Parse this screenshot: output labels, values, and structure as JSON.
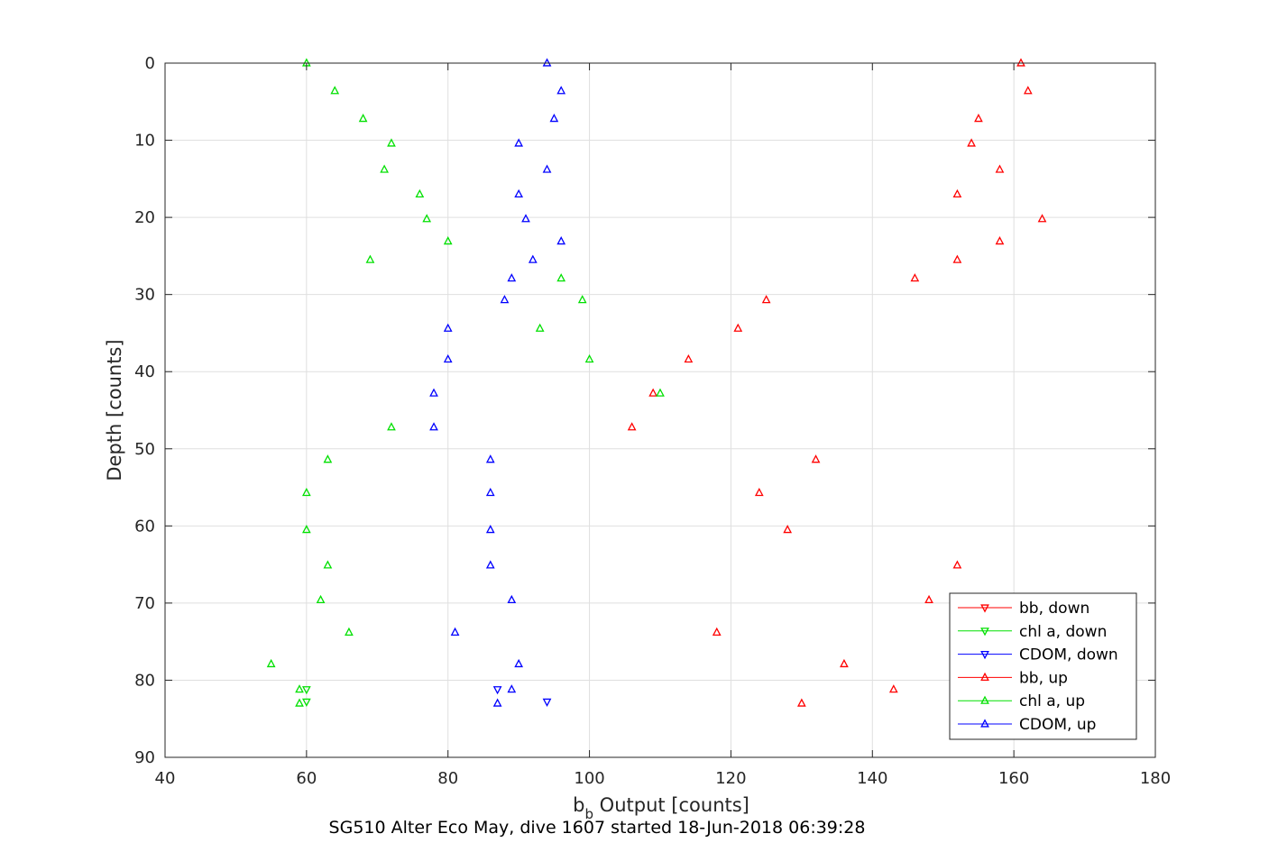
{
  "chart_data": {
    "type": "scatter",
    "xlabel_main": "b",
    "xlabel_sub": "b",
    "xlabel_rest": " Output [counts]",
    "ylabel": "Depth [counts]",
    "subtitle": "SG510 Alter Eco May, dive 1607 started 18-Jun-2018 06:39:28",
    "xlim": [
      40,
      180
    ],
    "ylim": [
      0,
      90
    ],
    "y_reversed": true,
    "x_ticks": [
      "40",
      "60",
      "80",
      "100",
      "120",
      "140",
      "160",
      "180"
    ],
    "y_ticks": [
      "0",
      "10",
      "20",
      "30",
      "40",
      "50",
      "60",
      "70",
      "80",
      "90"
    ],
    "grid": true,
    "legend_position": "bottom-right",
    "series": [
      {
        "name": "bb, down",
        "color": "#ff0000",
        "marker": "triangle-down",
        "points": []
      },
      {
        "name": "chl a, down",
        "color": "#00e000",
        "marker": "triangle-down",
        "points": [
          [
            60,
            81.2
          ],
          [
            60,
            82.8
          ]
        ]
      },
      {
        "name": "CDOM, down",
        "color": "#0000ff",
        "marker": "triangle-down",
        "points": [
          [
            87,
            81.2
          ],
          [
            94,
            82.8
          ]
        ]
      },
      {
        "name": "bb, up",
        "color": "#ff0000",
        "marker": "triangle-up",
        "points": [
          [
            161,
            0
          ],
          [
            162,
            3.6
          ],
          [
            155,
            7.2
          ],
          [
            154,
            10.4
          ],
          [
            158,
            13.8
          ],
          [
            152,
            17
          ],
          [
            164,
            20.2
          ],
          [
            158,
            23.1
          ],
          [
            152,
            25.5
          ],
          [
            146,
            27.9
          ],
          [
            125,
            30.7
          ],
          [
            121,
            34.4
          ],
          [
            114,
            38.4
          ],
          [
            109,
            42.8
          ],
          [
            106,
            47.2
          ],
          [
            132,
            51.4
          ],
          [
            124,
            55.7
          ],
          [
            128,
            60.5
          ],
          [
            152,
            65.1
          ],
          [
            148,
            69.6
          ],
          [
            118,
            73.8
          ],
          [
            136,
            77.9
          ],
          [
            143,
            81.2
          ],
          [
            130,
            83
          ]
        ]
      },
      {
        "name": "chl a, up",
        "color": "#00e000",
        "marker": "triangle-up",
        "points": [
          [
            60,
            0
          ],
          [
            64,
            3.6
          ],
          [
            68,
            7.2
          ],
          [
            72,
            10.4
          ],
          [
            71,
            13.8
          ],
          [
            76,
            17
          ],
          [
            77,
            20.2
          ],
          [
            80,
            23.1
          ],
          [
            69,
            25.5
          ],
          [
            96,
            27.9
          ],
          [
            99,
            30.7
          ],
          [
            93,
            34.4
          ],
          [
            100,
            38.4
          ],
          [
            110,
            42.8
          ],
          [
            72,
            47.2
          ],
          [
            63,
            51.4
          ],
          [
            60,
            55.7
          ],
          [
            60,
            60.5
          ],
          [
            63,
            65.1
          ],
          [
            62,
            69.6
          ],
          [
            66,
            73.8
          ],
          [
            55,
            77.9
          ],
          [
            59,
            81.2
          ],
          [
            59,
            83
          ]
        ]
      },
      {
        "name": "CDOM, up",
        "color": "#0000ff",
        "marker": "triangle-up",
        "points": [
          [
            94,
            0
          ],
          [
            96,
            3.6
          ],
          [
            95,
            7.2
          ],
          [
            90,
            10.4
          ],
          [
            94,
            13.8
          ],
          [
            90,
            17
          ],
          [
            91,
            20.2
          ],
          [
            96,
            23.1
          ],
          [
            92,
            25.5
          ],
          [
            89,
            27.9
          ],
          [
            88,
            30.7
          ],
          [
            80,
            34.4
          ],
          [
            80,
            38.4
          ],
          [
            78,
            42.8
          ],
          [
            78,
            47.2
          ],
          [
            86,
            51.4
          ],
          [
            86,
            55.7
          ],
          [
            86,
            60.5
          ],
          [
            86,
            65.1
          ],
          [
            89,
            69.6
          ],
          [
            81,
            73.8
          ],
          [
            90,
            77.9
          ],
          [
            89,
            81.2
          ],
          [
            87,
            83
          ]
        ]
      }
    ]
  }
}
